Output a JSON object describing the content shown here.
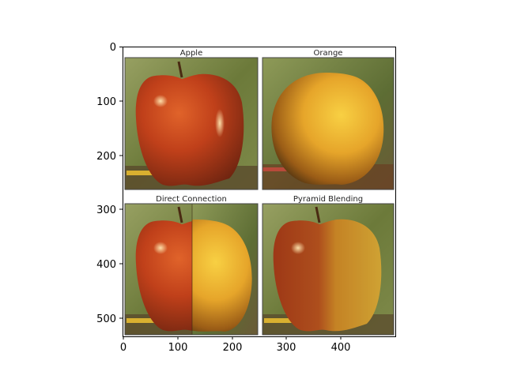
{
  "figure": {
    "x_ticks": [
      "0",
      "100",
      "200",
      "300",
      "400"
    ],
    "y_ticks": [
      "0",
      "100",
      "200",
      "300",
      "400",
      "500"
    ]
  },
  "panels": {
    "apple": {
      "title": "Apple"
    },
    "orange": {
      "title": "Orange"
    },
    "direct": {
      "title": "Direct Connection"
    },
    "pyramid": {
      "title": "Pyramid Blending"
    }
  },
  "colors": {
    "apple_red": "#c0401a",
    "orange_yellow": "#e6a52a",
    "background_green": "#6f7e3c"
  }
}
